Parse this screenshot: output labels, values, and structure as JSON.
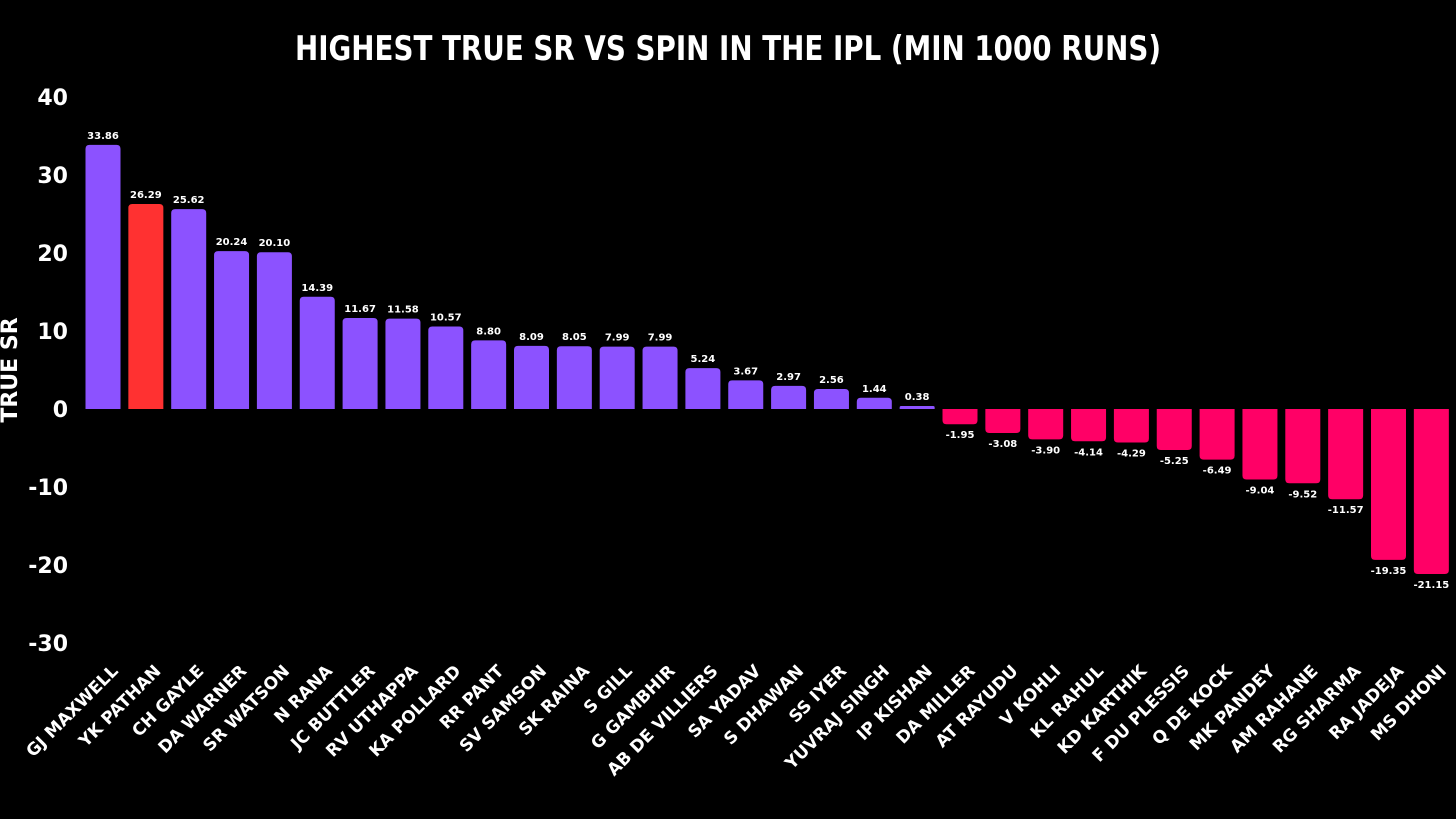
{
  "chart_data": {
    "type": "bar",
    "title": "HIGHEST TRUE SR VS SPIN IN THE IPL (MIN 1000 RUNS)",
    "xlabel": "",
    "ylabel": "TRUE SR",
    "ylim": [
      -30,
      40
    ],
    "yticks": [
      40,
      30,
      20,
      10,
      0,
      -10,
      -20,
      -30
    ],
    "grid": false,
    "categories": [
      "GJ MAXWELL",
      "YK PATHAN",
      "CH GAYLE",
      "DA WARNER",
      "SR WATSON",
      "N RANA",
      "JC BUTTLER",
      "RV UTHAPPA",
      "KA POLLARD",
      "RR PANT",
      "SV SAMSON",
      "SK RAINA",
      "S GILL",
      "G GAMBHIR",
      "AB DE VILLIERS",
      "SA YADAV",
      "S DHAWAN",
      "SS IYER",
      "YUVRAJ SINGH",
      "IP KISHAN",
      "DA MILLER",
      "AT RAYUDU",
      "V KOHLI",
      "KL RAHUL",
      "KD KARTHIK",
      "F DU PLESSIS",
      "Q DE KOCK",
      "MK PANDEY",
      "AM RAHANE",
      "RG SHARMA",
      "RA JADEJA",
      "MS DHONI"
    ],
    "values": [
      33.86,
      26.29,
      25.62,
      20.24,
      20.1,
      14.39,
      11.67,
      11.58,
      10.57,
      8.8,
      8.09,
      8.05,
      7.99,
      7.99,
      5.24,
      3.67,
      2.97,
      2.56,
      1.44,
      0.38,
      -1.95,
      -3.08,
      -3.9,
      -4.14,
      -4.29,
      -5.25,
      -6.49,
      -9.04,
      -9.52,
      -11.57,
      -19.35,
      -21.15
    ],
    "value_labels": [
      "33.86",
      "26.29",
      "25.62",
      "20.24",
      "20.10",
      "14.39",
      "11.67",
      "11.58",
      "10.57",
      "8.80",
      "8.09",
      "8.05",
      "7.99",
      "7.99",
      "5.24",
      "3.67",
      "2.97",
      "2.56",
      "1.44",
      "0.38",
      "-1.95",
      "-3.08",
      "-3.90",
      "-4.14",
      "-4.29",
      "-5.25",
      "-6.49",
      "-9.04",
      "-9.52",
      "-11.57",
      "-19.35",
      "-21.15"
    ],
    "colors": {
      "background": "#000000",
      "positive": "#8c52ff",
      "highlight": "#ff3131",
      "negative": "#ff0066",
      "text": "#ffffff"
    },
    "highlight_category": "YK PATHAN"
  }
}
